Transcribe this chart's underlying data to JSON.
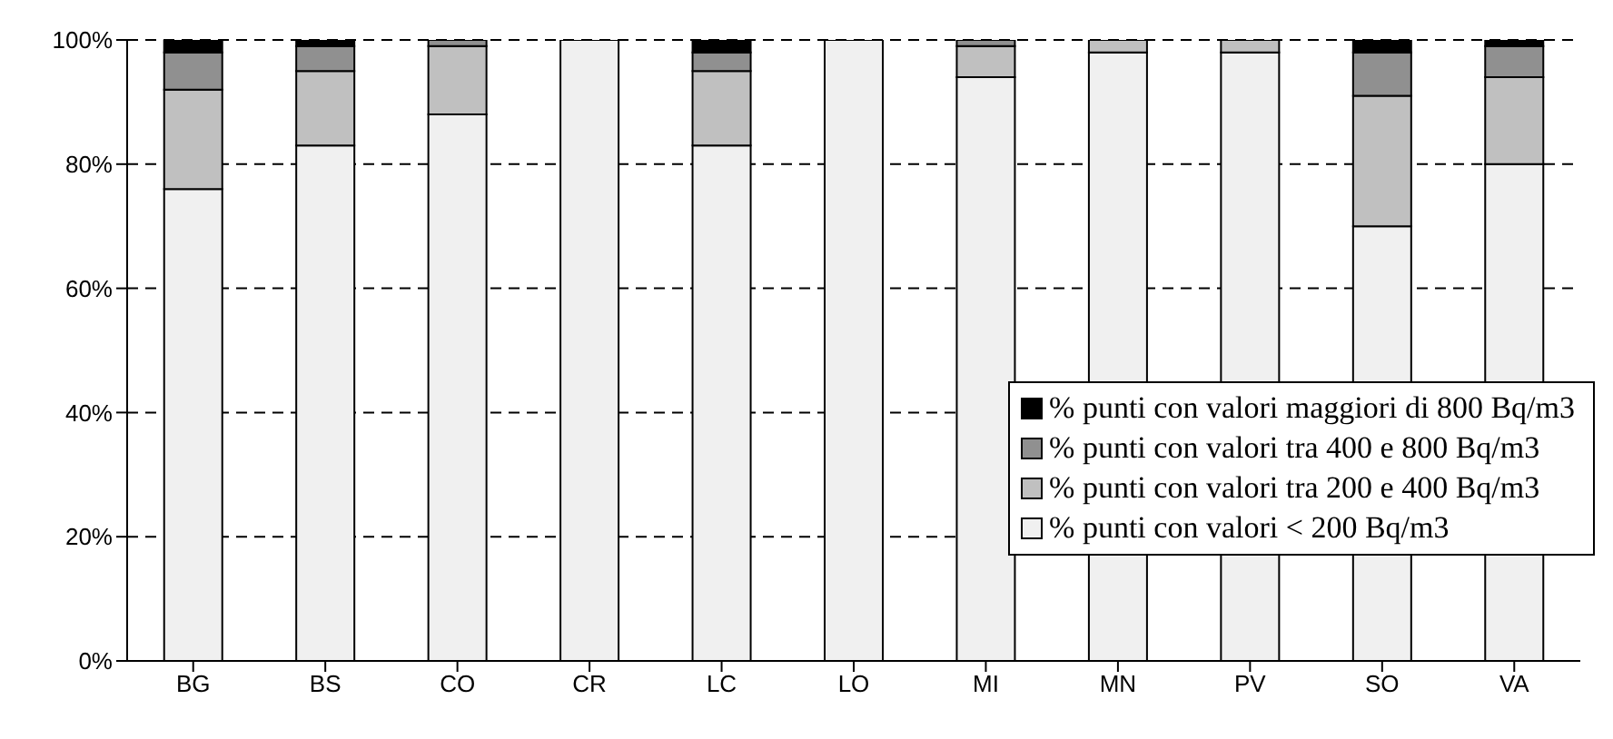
{
  "chart_data": {
    "type": "bar",
    "stacked": true,
    "categories": [
      "BG",
      "BS",
      "CO",
      "CR",
      "LC",
      "LO",
      "MI",
      "MN",
      "PV",
      "SO",
      "VA"
    ],
    "series": [
      {
        "name": "% punti con valori < 200 Bq/m3",
        "color": "#f0f0f0",
        "values": [
          76,
          83,
          88,
          100,
          83,
          100,
          94,
          98,
          98,
          70,
          80
        ]
      },
      {
        "name": "% punti con valori tra 200 e 400 Bq/m3",
        "color": "#c0c0c0",
        "values": [
          16,
          12,
          11,
          0,
          12,
          0,
          5,
          2,
          2,
          21,
          14
        ]
      },
      {
        "name": "% punti con valori tra 400 e 800 Bq/m3",
        "color": "#909090",
        "values": [
          6,
          4,
          1,
          0,
          3,
          0,
          1,
          0,
          0,
          7,
          5
        ]
      },
      {
        "name": "% punti con valori maggiori di 800 Bq/m3",
        "color": "#000000",
        "values": [
          2,
          1,
          0,
          0,
          2,
          0,
          0,
          0,
          0,
          2,
          1
        ]
      }
    ],
    "ylim": [
      0,
      100
    ],
    "yticks": [
      {
        "value": 0,
        "label": "0%"
      },
      {
        "value": 20,
        "label": "20%"
      },
      {
        "value": 40,
        "label": "40%"
      },
      {
        "value": 60,
        "label": "60%"
      },
      {
        "value": 80,
        "label": "80%"
      },
      {
        "value": 100,
        "label": "100%"
      }
    ],
    "grid": "y",
    "legend": "bottom right"
  }
}
